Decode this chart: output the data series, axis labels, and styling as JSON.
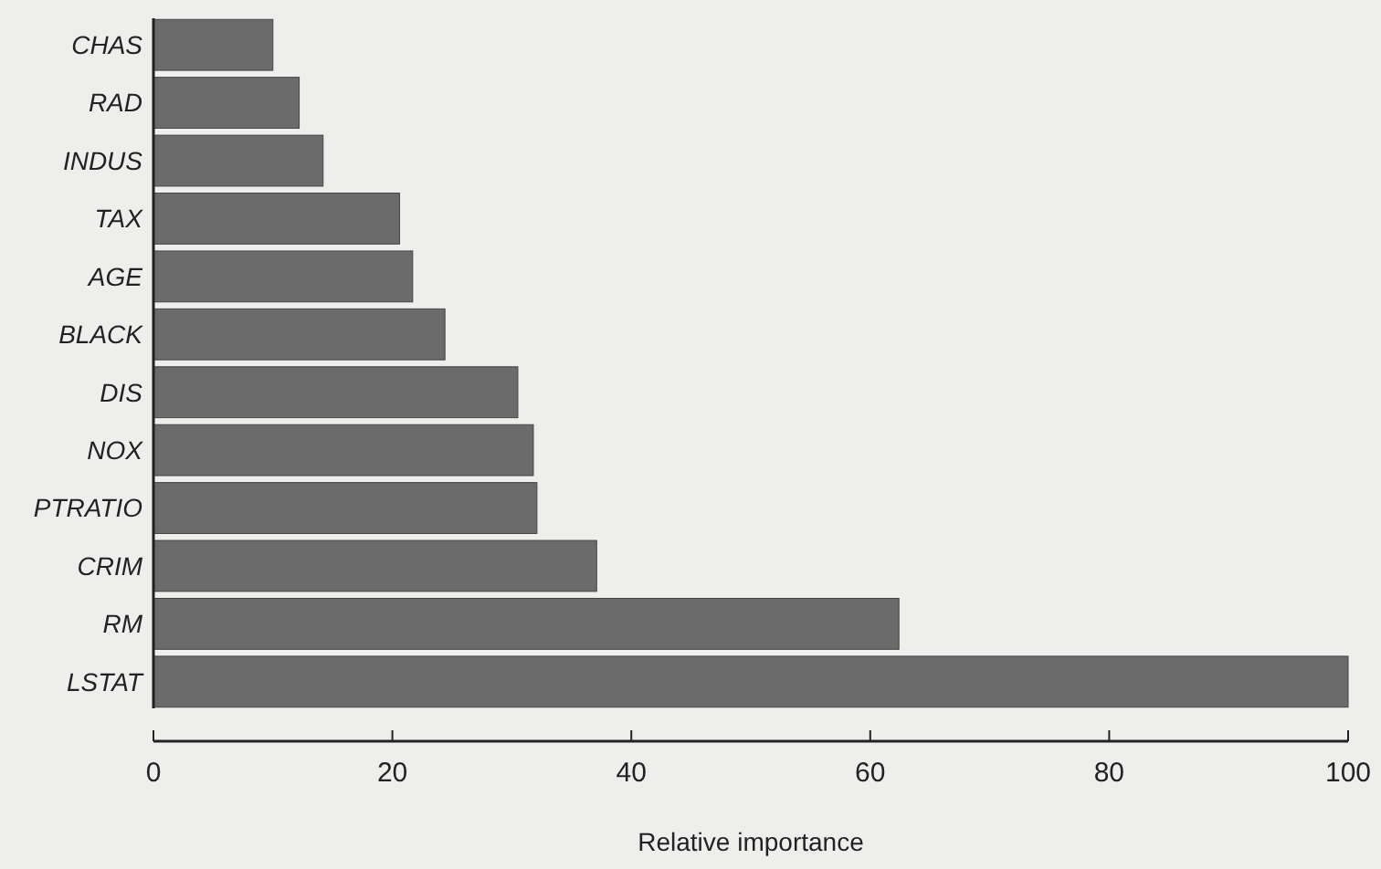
{
  "chart_data": {
    "type": "bar",
    "orientation": "horizontal",
    "xlabel": "Relative importance",
    "categories": [
      "CHAS",
      "RAD",
      "INDUS",
      "TAX",
      "AGE",
      "BLACK",
      "DIS",
      "NOX",
      "PTRATIO",
      "CRIM",
      "RM",
      "LSTAT"
    ],
    "values": [
      10,
      12.2,
      14.2,
      20.6,
      21.7,
      24.4,
      30.5,
      31.8,
      32.1,
      37.1,
      62.4,
      100
    ],
    "color": "#6b6b6b",
    "xlim": [
      0,
      100
    ],
    "xticks": [
      0,
      20,
      40,
      60,
      80,
      100
    ]
  }
}
